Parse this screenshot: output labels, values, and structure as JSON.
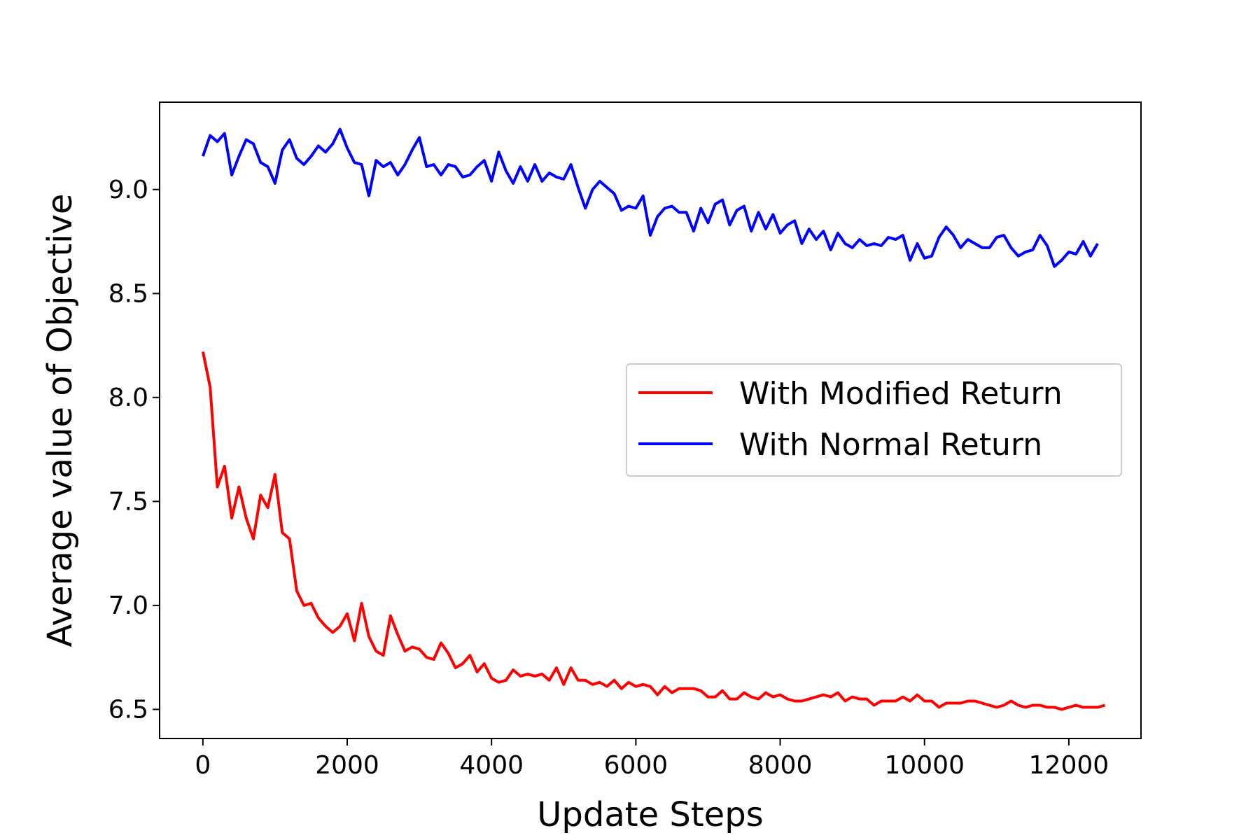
{
  "chart_data": {
    "type": "line",
    "title": "",
    "xlabel": "Update Steps",
    "ylabel": "Average value of Objective",
    "xlim": [
      -600,
      13000
    ],
    "ylim": [
      6.36,
      9.42
    ],
    "xticks": [
      0,
      2000,
      4000,
      6000,
      8000,
      10000,
      12000
    ],
    "xtick_labels": [
      "0",
      "2000",
      "4000",
      "6000",
      "8000",
      "10000",
      "12000"
    ],
    "yticks": [
      6.5,
      7.0,
      7.5,
      8.0,
      8.5,
      9.0
    ],
    "ytick_labels": [
      "6.5",
      "7.0",
      "7.5",
      "8.0",
      "8.5",
      "9.0"
    ],
    "grid": false,
    "legend_position": "center-right",
    "series": [
      {
        "name": "With Modified Return",
        "color": "#ff0000",
        "points": [
          [
            0,
            8.22
          ],
          [
            100,
            8.05
          ],
          [
            200,
            7.57
          ],
          [
            300,
            7.67
          ],
          [
            400,
            7.42
          ],
          [
            500,
            7.57
          ],
          [
            600,
            7.42
          ],
          [
            700,
            7.32
          ],
          [
            800,
            7.53
          ],
          [
            900,
            7.47
          ],
          [
            1000,
            7.63
          ],
          [
            1100,
            7.35
          ],
          [
            1200,
            7.32
          ],
          [
            1300,
            7.07
          ],
          [
            1400,
            7.0
          ],
          [
            1500,
            7.01
          ],
          [
            1600,
            6.94
          ],
          [
            1700,
            6.9
          ],
          [
            1800,
            6.87
          ],
          [
            1900,
            6.9
          ],
          [
            2000,
            6.96
          ],
          [
            2100,
            6.83
          ],
          [
            2200,
            7.01
          ],
          [
            2300,
            6.85
          ],
          [
            2400,
            6.78
          ],
          [
            2500,
            6.76
          ],
          [
            2600,
            6.95
          ],
          [
            2700,
            6.86
          ],
          [
            2800,
            6.78
          ],
          [
            2900,
            6.8
          ],
          [
            3000,
            6.79
          ],
          [
            3100,
            6.75
          ],
          [
            3200,
            6.74
          ],
          [
            3300,
            6.82
          ],
          [
            3400,
            6.77
          ],
          [
            3500,
            6.7
          ],
          [
            3600,
            6.72
          ],
          [
            3700,
            6.76
          ],
          [
            3800,
            6.68
          ],
          [
            3900,
            6.72
          ],
          [
            4000,
            6.65
          ],
          [
            4100,
            6.63
          ],
          [
            4200,
            6.64
          ],
          [
            4300,
            6.69
          ],
          [
            4400,
            6.66
          ],
          [
            4500,
            6.67
          ],
          [
            4600,
            6.66
          ],
          [
            4700,
            6.67
          ],
          [
            4800,
            6.64
          ],
          [
            4900,
            6.7
          ],
          [
            5000,
            6.62
          ],
          [
            5100,
            6.7
          ],
          [
            5200,
            6.64
          ],
          [
            5300,
            6.64
          ],
          [
            5400,
            6.62
          ],
          [
            5500,
            6.63
          ],
          [
            5600,
            6.61
          ],
          [
            5700,
            6.64
          ],
          [
            5800,
            6.6
          ],
          [
            5900,
            6.63
          ],
          [
            6000,
            6.61
          ],
          [
            6100,
            6.62
          ],
          [
            6200,
            6.61
          ],
          [
            6300,
            6.57
          ],
          [
            6400,
            6.61
          ],
          [
            6500,
            6.58
          ],
          [
            6600,
            6.6
          ],
          [
            6700,
            6.6
          ],
          [
            6800,
            6.6
          ],
          [
            6900,
            6.59
          ],
          [
            7000,
            6.56
          ],
          [
            7100,
            6.56
          ],
          [
            7200,
            6.59
          ],
          [
            7300,
            6.55
          ],
          [
            7400,
            6.55
          ],
          [
            7500,
            6.58
          ],
          [
            7600,
            6.56
          ],
          [
            7700,
            6.55
          ],
          [
            7800,
            6.58
          ],
          [
            7900,
            6.56
          ],
          [
            8000,
            6.57
          ],
          [
            8100,
            6.55
          ],
          [
            8200,
            6.54
          ],
          [
            8300,
            6.54
          ],
          [
            8400,
            6.55
          ],
          [
            8500,
            6.56
          ],
          [
            8600,
            6.57
          ],
          [
            8700,
            6.56
          ],
          [
            8800,
            6.58
          ],
          [
            8900,
            6.54
          ],
          [
            9000,
            6.56
          ],
          [
            9100,
            6.55
          ],
          [
            9200,
            6.55
          ],
          [
            9300,
            6.52
          ],
          [
            9400,
            6.54
          ],
          [
            9500,
            6.54
          ],
          [
            9600,
            6.54
          ],
          [
            9700,
            6.56
          ],
          [
            9800,
            6.54
          ],
          [
            9900,
            6.57
          ],
          [
            10000,
            6.54
          ],
          [
            10100,
            6.54
          ],
          [
            10200,
            6.51
          ],
          [
            10300,
            6.53
          ],
          [
            10400,
            6.53
          ],
          [
            10500,
            6.53
          ],
          [
            10600,
            6.54
          ],
          [
            10700,
            6.54
          ],
          [
            10800,
            6.53
          ],
          [
            10900,
            6.52
          ],
          [
            11000,
            6.51
          ],
          [
            11100,
            6.52
          ],
          [
            11200,
            6.54
          ],
          [
            11300,
            6.52
          ],
          [
            11400,
            6.51
          ],
          [
            11500,
            6.52
          ],
          [
            11600,
            6.52
          ],
          [
            11700,
            6.51
          ],
          [
            11800,
            6.51
          ],
          [
            11900,
            6.5
          ],
          [
            12000,
            6.51
          ],
          [
            12100,
            6.52
          ],
          [
            12200,
            6.51
          ],
          [
            12300,
            6.51
          ],
          [
            12400,
            6.51
          ],
          [
            12500,
            6.52
          ]
        ]
      },
      {
        "name": "With Normal Return",
        "color": "#0000ff",
        "points": [
          [
            0,
            9.16
          ],
          [
            100,
            9.26
          ],
          [
            200,
            9.23
          ],
          [
            300,
            9.27
          ],
          [
            400,
            9.07
          ],
          [
            500,
            9.16
          ],
          [
            600,
            9.24
          ],
          [
            700,
            9.22
          ],
          [
            800,
            9.13
          ],
          [
            900,
            9.11
          ],
          [
            1000,
            9.03
          ],
          [
            1100,
            9.19
          ],
          [
            1200,
            9.24
          ],
          [
            1300,
            9.15
          ],
          [
            1400,
            9.12
          ],
          [
            1500,
            9.16
          ],
          [
            1600,
            9.21
          ],
          [
            1700,
            9.18
          ],
          [
            1800,
            9.22
          ],
          [
            1900,
            9.29
          ],
          [
            2000,
            9.2
          ],
          [
            2100,
            9.13
          ],
          [
            2200,
            9.12
          ],
          [
            2300,
            8.97
          ],
          [
            2400,
            9.14
          ],
          [
            2500,
            9.11
          ],
          [
            2600,
            9.13
          ],
          [
            2700,
            9.07
          ],
          [
            2800,
            9.12
          ],
          [
            2900,
            9.19
          ],
          [
            3000,
            9.25
          ],
          [
            3100,
            9.11
          ],
          [
            3200,
            9.12
          ],
          [
            3300,
            9.07
          ],
          [
            3400,
            9.12
          ],
          [
            3500,
            9.11
          ],
          [
            3600,
            9.06
          ],
          [
            3700,
            9.07
          ],
          [
            3800,
            9.11
          ],
          [
            3900,
            9.14
          ],
          [
            4000,
            9.04
          ],
          [
            4100,
            9.18
          ],
          [
            4200,
            9.09
          ],
          [
            4300,
            9.03
          ],
          [
            4400,
            9.11
          ],
          [
            4500,
            9.04
          ],
          [
            4600,
            9.12
          ],
          [
            4700,
            9.04
          ],
          [
            4800,
            9.08
          ],
          [
            4900,
            9.06
          ],
          [
            5000,
            9.05
          ],
          [
            5100,
            9.12
          ],
          [
            5200,
            9.01
          ],
          [
            5300,
            8.91
          ],
          [
            5400,
            9.0
          ],
          [
            5500,
            9.04
          ],
          [
            5600,
            9.01
          ],
          [
            5700,
            8.98
          ],
          [
            5800,
            8.9
          ],
          [
            5900,
            8.92
          ],
          [
            6000,
            8.91
          ],
          [
            6100,
            8.97
          ],
          [
            6200,
            8.78
          ],
          [
            6300,
            8.87
          ],
          [
            6400,
            8.91
          ],
          [
            6500,
            8.92
          ],
          [
            6600,
            8.89
          ],
          [
            6700,
            8.89
          ],
          [
            6800,
            8.8
          ],
          [
            6900,
            8.91
          ],
          [
            7000,
            8.84
          ],
          [
            7100,
            8.93
          ],
          [
            7200,
            8.95
          ],
          [
            7300,
            8.83
          ],
          [
            7400,
            8.9
          ],
          [
            7500,
            8.92
          ],
          [
            7600,
            8.8
          ],
          [
            7700,
            8.89
          ],
          [
            7800,
            8.81
          ],
          [
            7900,
            8.88
          ],
          [
            8000,
            8.79
          ],
          [
            8100,
            8.83
          ],
          [
            8200,
            8.85
          ],
          [
            8300,
            8.74
          ],
          [
            8400,
            8.81
          ],
          [
            8500,
            8.76
          ],
          [
            8600,
            8.8
          ],
          [
            8700,
            8.71
          ],
          [
            8800,
            8.79
          ],
          [
            8900,
            8.74
          ],
          [
            9000,
            8.72
          ],
          [
            9100,
            8.76
          ],
          [
            9200,
            8.73
          ],
          [
            9300,
            8.74
          ],
          [
            9400,
            8.73
          ],
          [
            9500,
            8.77
          ],
          [
            9600,
            8.76
          ],
          [
            9700,
            8.78
          ],
          [
            9800,
            8.66
          ],
          [
            9900,
            8.74
          ],
          [
            10000,
            8.67
          ],
          [
            10100,
            8.68
          ],
          [
            10200,
            8.77
          ],
          [
            10300,
            8.82
          ],
          [
            10400,
            8.78
          ],
          [
            10500,
            8.72
          ],
          [
            10600,
            8.76
          ],
          [
            10700,
            8.74
          ],
          [
            10800,
            8.72
          ],
          [
            10900,
            8.72
          ],
          [
            11000,
            8.77
          ],
          [
            11100,
            8.78
          ],
          [
            11200,
            8.72
          ],
          [
            11300,
            8.68
          ],
          [
            11400,
            8.7
          ],
          [
            11500,
            8.71
          ],
          [
            11600,
            8.78
          ],
          [
            11700,
            8.73
          ],
          [
            11800,
            8.63
          ],
          [
            11900,
            8.66
          ],
          [
            12000,
            8.7
          ],
          [
            12100,
            8.69
          ],
          [
            12200,
            8.75
          ],
          [
            12300,
            8.68
          ],
          [
            12400,
            8.74
          ]
        ]
      }
    ]
  }
}
